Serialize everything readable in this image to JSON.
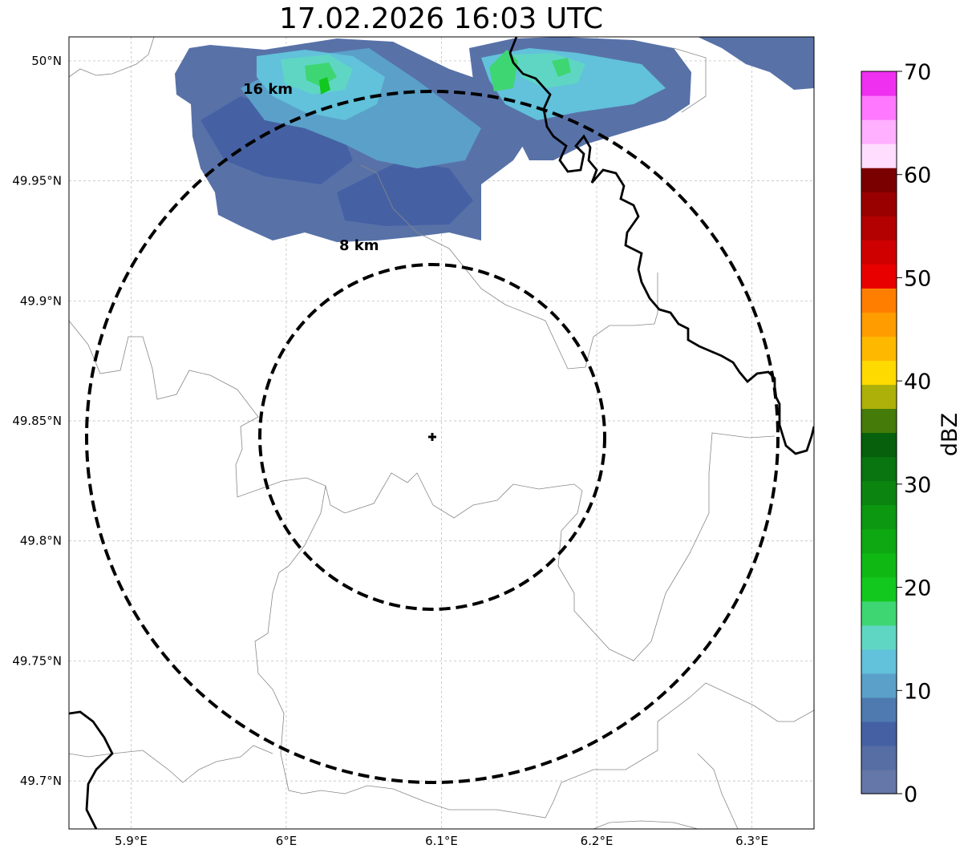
{
  "title": "17.02.2026 16:03 UTC",
  "map": {
    "lon_range": [
      5.86,
      6.34
    ],
    "lat_range": [
      49.68,
      50.01
    ],
    "x_ticks": [
      {
        "value": 5.9,
        "label": "5.9°E"
      },
      {
        "value": 6.0,
        "label": "6°E"
      },
      {
        "value": 6.1,
        "label": "6.1°E"
      },
      {
        "value": 6.2,
        "label": "6.2°E"
      },
      {
        "value": 6.3,
        "label": "6.3°E"
      }
    ],
    "y_ticks": [
      {
        "value": 50.0,
        "label": "50°N"
      },
      {
        "value": 49.95,
        "label": "49.95°N"
      },
      {
        "value": 49.9,
        "label": "49.9°N"
      },
      {
        "value": 49.85,
        "label": "49.85°N"
      },
      {
        "value": 49.8,
        "label": "49.8°N"
      },
      {
        "value": 49.75,
        "label": "49.75°N"
      },
      {
        "value": 49.7,
        "label": "49.7°N"
      }
    ],
    "gridlines": true,
    "center": {
      "lon": 6.094,
      "lat": 49.843
    },
    "rings": [
      {
        "radius_km": 8,
        "label": "8 km"
      },
      {
        "radius_km": 16,
        "label": "16 km"
      }
    ]
  },
  "colorbar": {
    "label": "dBZ",
    "min": 0,
    "max": 70,
    "tick_values": [
      0,
      10,
      20,
      30,
      40,
      50,
      60,
      70
    ],
    "tick_labels": [
      "0",
      "10",
      "20",
      "30",
      "40",
      "50",
      "60",
      "70"
    ],
    "colors": [
      "#6577a8",
      "#566ea3",
      "#4561a3",
      "#4e7ab0",
      "#5aa0c9",
      "#62c1db",
      "#5fd6c4",
      "#3ed672",
      "#12c81e",
      "#10b814",
      "#0ea812",
      "#0c9810",
      "#0b850f",
      "#087510",
      "#06600c",
      "#447b09",
      "#adb008",
      "#ffda00",
      "#ffb800",
      "#ff9c00",
      "#ff7e00",
      "#e80000",
      "#cf0000",
      "#b30000",
      "#990000",
      "#7a0000",
      "#ffddff",
      "#ffb0ff",
      "#ff78ff",
      "#f030f0"
    ]
  }
}
